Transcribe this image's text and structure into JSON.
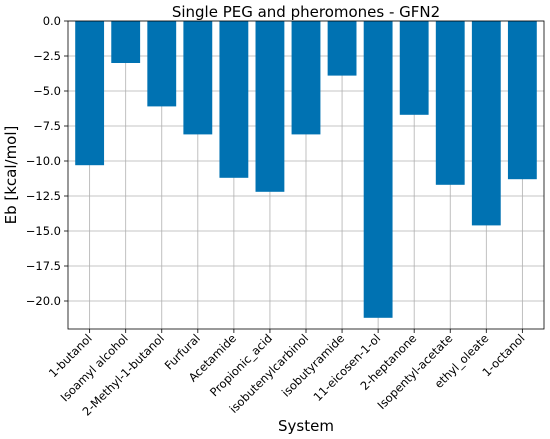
{
  "chart_data": {
    "type": "bar",
    "title": "Single PEG and pheromones - GFN2",
    "xlabel": "System",
    "ylabel": "Eb [kcal/mol]",
    "ylim": [
      -22.0,
      0.0
    ],
    "yticks": [
      0.0,
      -2.5,
      -5.0,
      -7.5,
      -10.0,
      -12.5,
      -15.0,
      -17.5,
      -20.0
    ],
    "ytick_labels": [
      "0.0",
      "−2.5",
      "−5.0",
      "−7.5",
      "−10.0",
      "−12.5",
      "−15.0",
      "−17.5",
      "−20.0"
    ],
    "grid": true,
    "bar_color": "#0072b2",
    "categories": [
      "1-butanol",
      "Isoamyl alcohol",
      "2-Methyl-1-butanol",
      "Furfural",
      "Acetamide",
      "Propionic_acid",
      "isobutenylcarbinol",
      "isobutyramide",
      "11-eicosen-1-ol",
      "2-heptanone",
      "Isopentyl-acetate",
      "ethyl_oleate",
      "1-octanol"
    ],
    "values": [
      -10.3,
      -3.0,
      -6.1,
      -8.1,
      -11.2,
      -12.2,
      -8.1,
      -3.9,
      -21.2,
      -6.7,
      -11.7,
      -14.6,
      -11.3
    ]
  }
}
